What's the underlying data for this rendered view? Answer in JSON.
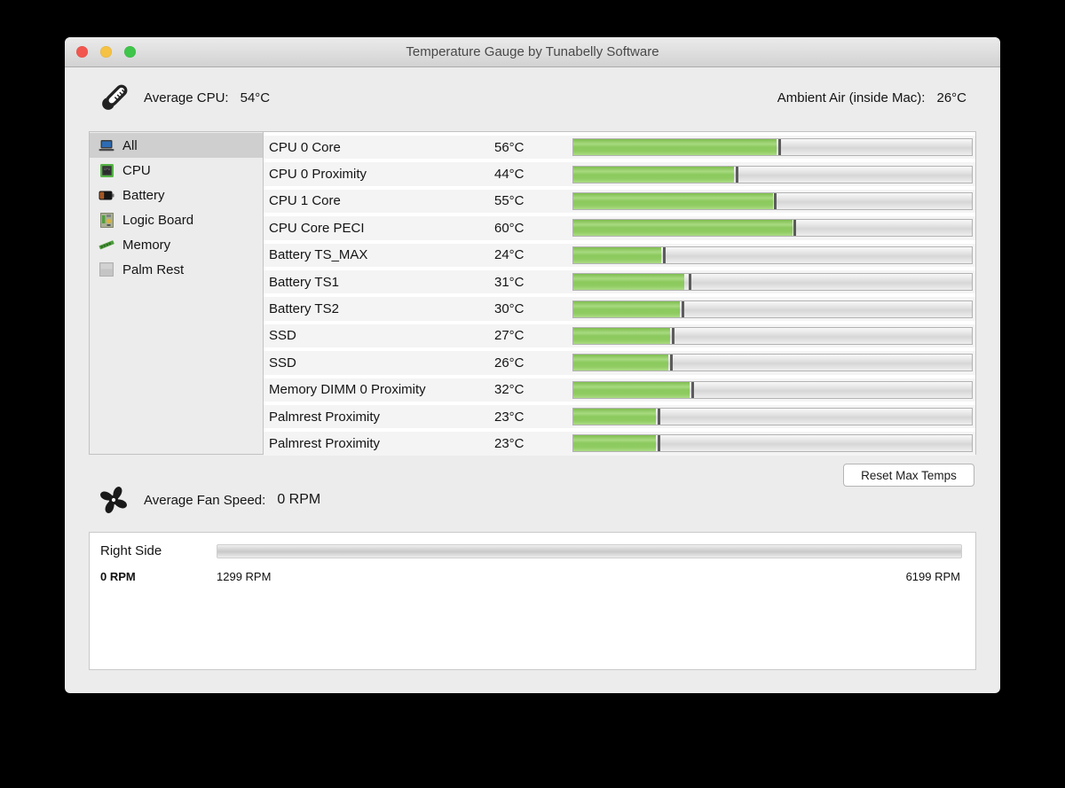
{
  "window": {
    "title": "Temperature Gauge by Tunabelly Software",
    "traffic_lights": {
      "red": "#f2574f",
      "yellow": "#f6c243",
      "green": "#3fc64a"
    }
  },
  "header": {
    "avg_cpu_label": "Average CPU:",
    "avg_cpu_value": "54°C",
    "ambient_label": "Ambient Air (inside Mac):",
    "ambient_value": "26°C"
  },
  "sidebar": {
    "items": [
      {
        "label": "All",
        "icon": "laptop-icon",
        "selected": true
      },
      {
        "label": "CPU",
        "icon": "cpu-icon",
        "selected": false
      },
      {
        "label": "Battery",
        "icon": "battery-icon",
        "selected": false
      },
      {
        "label": "Logic Board",
        "icon": "logicboard-icon",
        "selected": false
      },
      {
        "label": "Memory",
        "icon": "memory-icon",
        "selected": false
      },
      {
        "label": "Palm Rest",
        "icon": "palmrest-icon",
        "selected": false
      }
    ]
  },
  "sensors": {
    "bar_color": "#8bc95d",
    "max_marker_color": "#5c5c5c",
    "rows": [
      {
        "name": "CPU 0 Core",
        "temp": "56°C",
        "percent": 51.0,
        "max_percent": 51.6
      },
      {
        "name": "CPU 0 Proximity",
        "temp": "44°C",
        "percent": 40.3,
        "max_percent": 40.9
      },
      {
        "name": "CPU 1 Core",
        "temp": "55°C",
        "percent": 50.0,
        "max_percent": 50.6
      },
      {
        "name": "CPU Core PECI",
        "temp": "60°C",
        "percent": 54.9,
        "max_percent": 55.5
      },
      {
        "name": "Battery TS_MAX",
        "temp": "24°C",
        "percent": 22.1,
        "max_percent": 22.7
      },
      {
        "name": "Battery TS1",
        "temp": "31°C",
        "percent": 27.9,
        "max_percent": 29.2
      },
      {
        "name": "Battery TS2",
        "temp": "30°C",
        "percent": 26.8,
        "max_percent": 27.5
      },
      {
        "name": "SSD",
        "temp": "27°C",
        "percent": 24.3,
        "max_percent": 25.0
      },
      {
        "name": "SSD",
        "temp": "26°C",
        "percent": 23.9,
        "max_percent": 24.5
      },
      {
        "name": "Memory DIMM 0 Proximity",
        "temp": "32°C",
        "percent": 29.2,
        "max_percent": 29.9
      },
      {
        "name": "Palmrest Proximity",
        "temp": "23°C",
        "percent": 20.8,
        "max_percent": 21.4
      },
      {
        "name": "Palmrest Proximity",
        "temp": "23°C",
        "percent": 20.8,
        "max_percent": 21.4
      }
    ]
  },
  "reset_button_label": "Reset Max Temps",
  "fan": {
    "avg_label": "Average Fan Speed:",
    "avg_value": "0 RPM",
    "name": "Right Side",
    "current": "0 RPM",
    "min": "1299 RPM",
    "max": "6199 RPM",
    "percent": 0
  }
}
